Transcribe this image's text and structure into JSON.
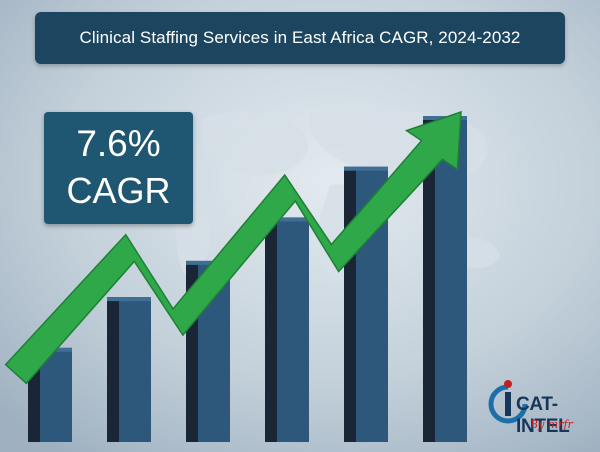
{
  "title": "Clinical Staffing Services in East Africa CAGR, 2024-2032",
  "cagr": {
    "value": "7.6%",
    "label": "CAGR"
  },
  "logo": {
    "name": "CAT-INTEL",
    "tagline": "By mrfr"
  },
  "colors": {
    "banner": "#1c4660",
    "bar_front": "#2e587b",
    "bar_side": "#1a2636",
    "arrow": "#2fa84a",
    "background": "#b8c7d2"
  },
  "chart_data": {
    "type": "bar",
    "categories": [
      "",
      "",
      "",
      "",
      "",
      ""
    ],
    "values": [
      1.3,
      2.0,
      2.5,
      3.1,
      3.8,
      4.5
    ],
    "ylim": [
      0,
      4.5
    ],
    "trend_arrow": "rising"
  }
}
